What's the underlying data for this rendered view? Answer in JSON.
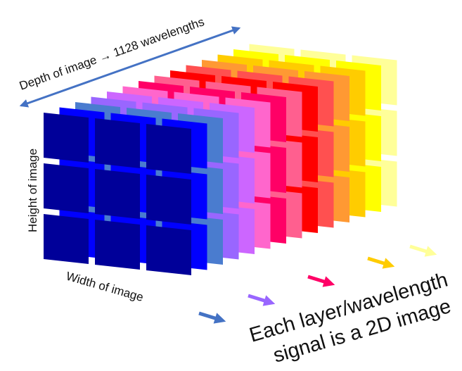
{
  "labels": {
    "depth": "Depth of image → 1128 wavelengths",
    "height": "Height of image",
    "width": "Width of image",
    "caption_line1": "Each layer/wavelength",
    "caption_line2": "signal is a 2D image"
  },
  "layers": [
    {
      "name": "layer-light-yellow",
      "color": "#ffff99"
    },
    {
      "name": "layer-yellow",
      "color": "#ffff00"
    },
    {
      "name": "layer-gold",
      "color": "#ffcc00"
    },
    {
      "name": "layer-orange",
      "color": "#ff9933"
    },
    {
      "name": "layer-coral",
      "color": "#ff5050"
    },
    {
      "name": "layer-red",
      "color": "#ff0000"
    },
    {
      "name": "layer-rose",
      "color": "#ff5f8f"
    },
    {
      "name": "layer-crimson",
      "color": "#ff0066"
    },
    {
      "name": "layer-pink",
      "color": "#ff66cc"
    },
    {
      "name": "layer-violet",
      "color": "#cc66ff"
    },
    {
      "name": "layer-purple",
      "color": "#9966ff"
    },
    {
      "name": "layer-steel-blue",
      "color": "#4a7ccf"
    },
    {
      "name": "layer-bright-blue",
      "color": "#0000ff"
    },
    {
      "name": "layer-navy",
      "color": "#000099"
    }
  ],
  "colors": {
    "depth_arrow": "#4472c4",
    "blue_arrow": "#4472c4",
    "purple_arrow": "#9966ff",
    "crimson_arrow": "#ff0066",
    "gold_arrow": "#ffcc00",
    "yellow_arrow": "#ffff99"
  }
}
